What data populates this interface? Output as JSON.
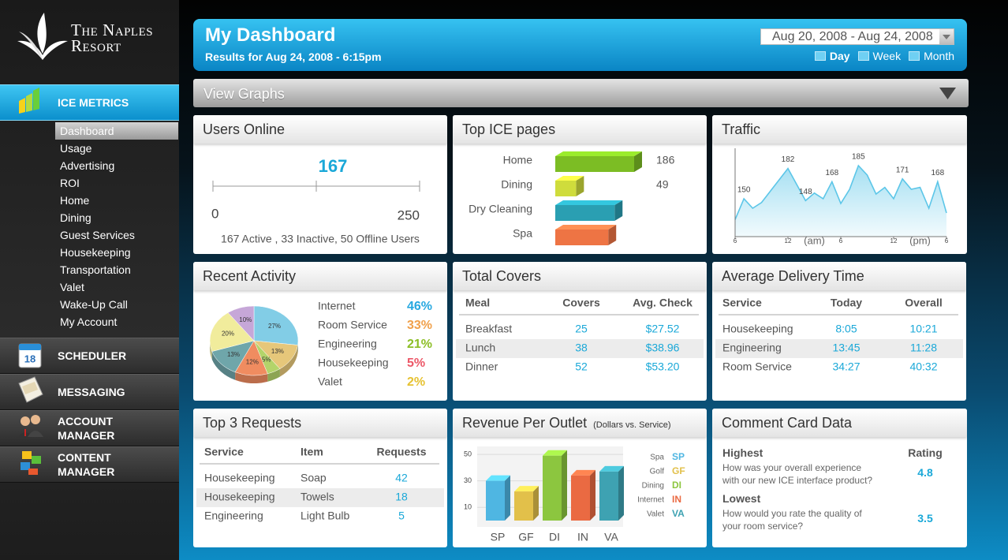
{
  "brand": {
    "line1": "The Naples",
    "line2": "Resort"
  },
  "nav": {
    "active_section": 0,
    "selected_item": 0,
    "sections": [
      {
        "label": "ICE METRICS",
        "items": [
          "Dashboard",
          "Usage",
          "Advertising",
          "ROI",
          "Home",
          "Dining",
          "Guest Services",
          "Housekeeping",
          "Transportation",
          "Valet",
          "Wake-Up Call",
          "My Account"
        ]
      },
      {
        "label": "SCHEDULER",
        "icon_label": "18"
      },
      {
        "label": "MESSAGING"
      },
      {
        "label": "ACCOUNT MANAGER"
      },
      {
        "label": "CONTENT MANAGER"
      }
    ]
  },
  "header": {
    "title": "My Dashboard",
    "subtitle": "Results for Aug 24, 2008 - 6:15pm",
    "date_range": "Aug 20, 2008 - Aug 24, 2008",
    "periods": [
      "Day",
      "Week",
      "Month"
    ],
    "selected_period": 0
  },
  "view_graphs": "View Graphs",
  "users_online": {
    "title": "Users Online",
    "value": 167,
    "min": 0,
    "max": 250,
    "summary": "167 Active , 33 Inactive, 50 Offline Users"
  },
  "top_ice_pages": {
    "title": "Top ICE pages",
    "type": "bar",
    "categories": [
      "Home",
      "Dining",
      "Dry Cleaning",
      "Spa"
    ],
    "values": [
      186,
      49,
      140,
      125
    ],
    "value_labels": [
      "186",
      "49",
      null,
      null
    ],
    "colors": [
      "#7cbd24",
      "#cfdc3c",
      "#2a9fb2",
      "#ee7444"
    ]
  },
  "traffic": {
    "title": "Traffic",
    "type": "line",
    "color": "#5cc6e8",
    "x": [
      0,
      1,
      2,
      3,
      4,
      5,
      6,
      7,
      8,
      9,
      10,
      11,
      12,
      13,
      14,
      15,
      16,
      17,
      18,
      19,
      20,
      21,
      22,
      23,
      24
    ],
    "values": [
      128,
      150,
      140,
      146,
      158,
      170,
      182,
      165,
      148,
      156,
      150,
      168,
      145,
      160,
      185,
      175,
      155,
      162,
      150,
      171,
      160,
      162,
      140,
      168,
      135
    ],
    "value_labels": [
      null,
      "150",
      null,
      null,
      null,
      null,
      "182",
      null,
      "148",
      null,
      null,
      "168",
      null,
      null,
      "185",
      null,
      null,
      null,
      null,
      "171",
      null,
      null,
      null,
      "168",
      null
    ],
    "xlim": [
      0,
      24
    ],
    "ylim": [
      110,
      200
    ],
    "xticks": [
      {
        "value": 0,
        "label": "6"
      },
      {
        "value": 6,
        "label": "12"
      },
      {
        "value": 12,
        "label": "6"
      },
      {
        "value": 18,
        "label": "12"
      },
      {
        "value": 24,
        "label": "6"
      }
    ],
    "annotations": [
      "(am)",
      "(pm)"
    ]
  },
  "recent_activity": {
    "title": "Recent Activity",
    "type": "pie",
    "values": [
      27,
      13,
      5,
      12,
      13,
      20,
      10
    ],
    "value_labels": [
      "27%",
      "13%",
      "5%",
      "12%",
      "13%",
      "20%",
      "10%"
    ],
    "colors": [
      "#82cde6",
      "#e6c77a",
      "#b3d46a",
      "#f08c60",
      "#6fa6aa",
      "#f1ec9c",
      "#c6a7d8"
    ],
    "legend": [
      {
        "name": "Internet",
        "value_label": "46%",
        "color": "#27a8e0"
      },
      {
        "name": "Room Service",
        "value_label": "33%",
        "color": "#f0a04a"
      },
      {
        "name": "Engineering",
        "value_label": "21%",
        "color": "#8cbe26"
      },
      {
        "name": "Housekeeping",
        "value_label": "5%",
        "color": "#ec5868"
      },
      {
        "name": "Valet",
        "value_label": "2%",
        "color": "#e6c232"
      }
    ]
  },
  "total_covers": {
    "title": "Total Covers",
    "columns": [
      "Meal",
      "Covers",
      "Avg. Check"
    ],
    "rows": [
      [
        "Breakfast",
        25,
        "$27.52"
      ],
      [
        "Lunch",
        38,
        "$38.96"
      ],
      [
        "Dinner",
        52,
        "$53.20"
      ]
    ]
  },
  "delivery_time": {
    "title": "Average Delivery Time",
    "columns": [
      "Service",
      "Today",
      "Overall"
    ],
    "rows": [
      [
        "Housekeeping",
        "8:05",
        "10:21"
      ],
      [
        "Engineering",
        "13:45",
        "11:28"
      ],
      [
        "Room Service",
        "34:27",
        "40:32"
      ]
    ]
  },
  "top_requests": {
    "title": "Top 3 Requests",
    "columns": [
      "Service",
      "Item",
      "Requests"
    ],
    "rows": [
      [
        "Housekeeping",
        "Soap",
        42
      ],
      [
        "Housekeeping",
        "Towels",
        18
      ],
      [
        "Engineering",
        "Light Bulb",
        5
      ]
    ]
  },
  "revenue": {
    "title": "Revenue Per Outlet",
    "subtitle": "(Dollars vs. Service)",
    "type": "bar",
    "categories": [
      "SP",
      "GF",
      "DI",
      "IN",
      "VA"
    ],
    "values": [
      30,
      22,
      49,
      34,
      37
    ],
    "colors": [
      "#4fb6e2",
      "#e2c04a",
      "#8cc63f",
      "#ea6a42",
      "#3ea2b2"
    ],
    "legend": [
      "Spa",
      "Golf",
      "Dining",
      "Internet",
      "Valet"
    ],
    "ylim": [
      0,
      56
    ],
    "yticks": [
      10,
      30,
      50
    ],
    "grid": true
  },
  "comment_card": {
    "title": "Comment Card Data",
    "rating_label": "Rating",
    "highest": {
      "label": "Highest",
      "question": "How was your overall experience with our new ICE interface product?",
      "rating": 4.8
    },
    "lowest": {
      "label": "Lowest",
      "question": "How would you rate the quality of your room service?",
      "rating": 3.5
    }
  }
}
